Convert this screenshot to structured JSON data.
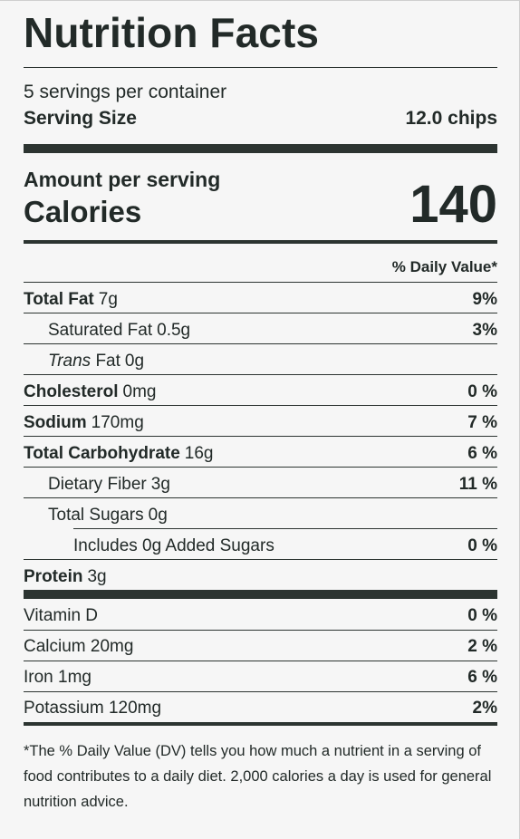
{
  "title": "Nutrition Facts",
  "servings_per_container": "5 servings per container",
  "serving_size": {
    "label": "Serving Size",
    "value": "12.0 chips"
  },
  "amount_per_serving": "Amount per serving",
  "calories": {
    "label": "Calories",
    "value": "140"
  },
  "daily_value_header": "% Daily Value*",
  "nutrients": [
    {
      "name": "Total Fat",
      "amount": "7g",
      "dv": "9%"
    },
    {
      "name": "Saturated Fat",
      "amount": "0.5g",
      "dv": "3%"
    },
    {
      "name_italic": "Trans",
      "name": "Fat",
      "amount": "0g",
      "dv": ""
    },
    {
      "name": "Cholesterol",
      "amount": "0mg",
      "dv": "0 %"
    },
    {
      "name": "Sodium",
      "amount": "170mg",
      "dv": "7 %"
    },
    {
      "name": "Total Carbohydrate",
      "amount": "16g",
      "dv": "6 %"
    },
    {
      "name": "Dietary Fiber",
      "amount": "3g",
      "dv": "11 %"
    },
    {
      "name": "Total Sugars",
      "amount": "0g",
      "dv": ""
    },
    {
      "name": "Includes 0g Added Sugars",
      "amount": "",
      "dv": "0 %"
    },
    {
      "name": "Protein",
      "amount": "3g",
      "dv": ""
    }
  ],
  "vitamins": [
    {
      "name": "Vitamin D",
      "dv": "0 %"
    },
    {
      "name": "Calcium 20mg",
      "dv": "2 %"
    },
    {
      "name": "Iron 1mg",
      "dv": "6 %"
    },
    {
      "name": "Potassium 120mg",
      "dv": "2%"
    }
  ],
  "footnote": "*The % Daily Value (DV) tells you how much a nutrient in a serving of food contributes to a daily diet. 2,000 calories a day is used for general nutrition advice."
}
